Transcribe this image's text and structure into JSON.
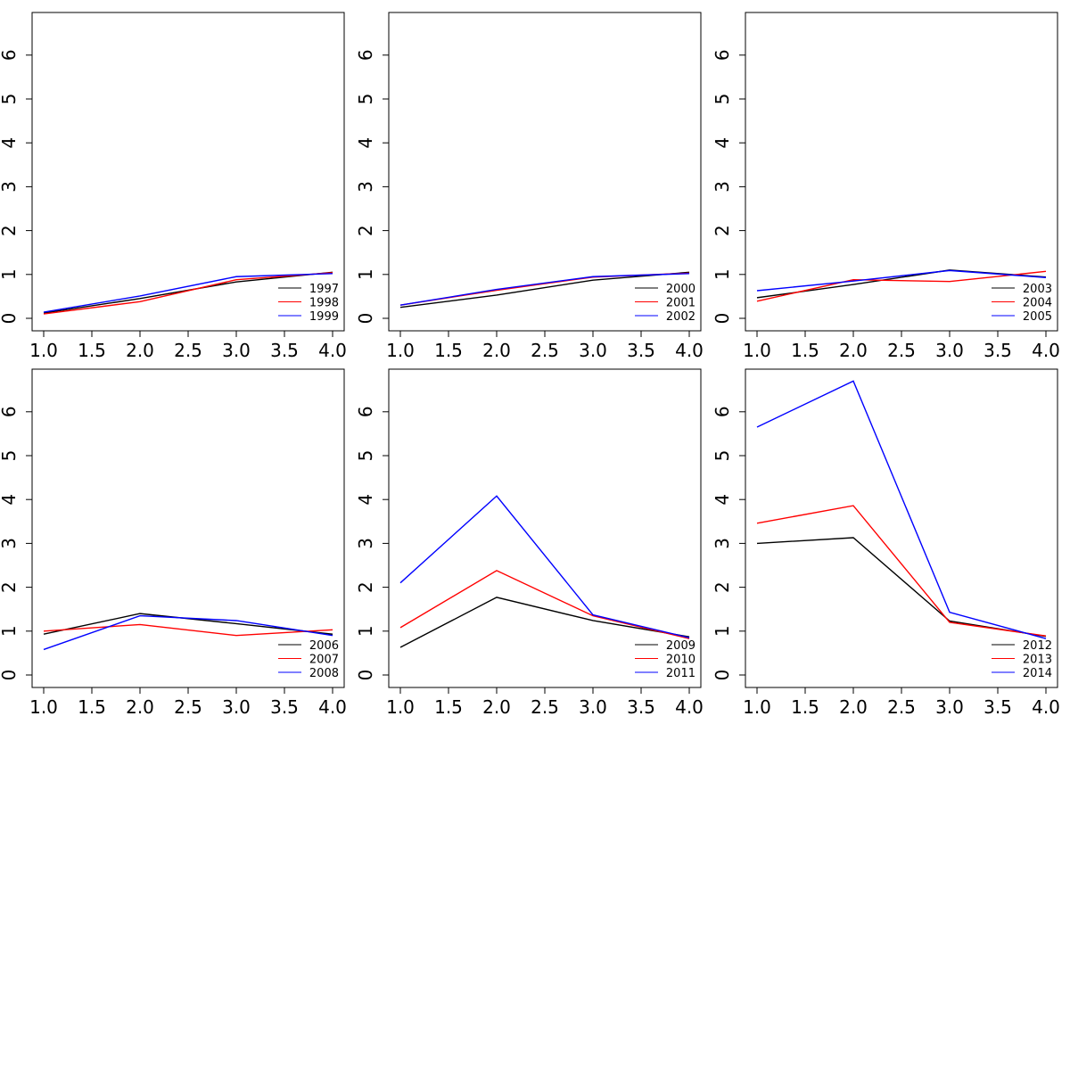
{
  "chart_data": [
    {
      "type": "line",
      "x": [
        1,
        2,
        3,
        4
      ],
      "xlim": [
        1,
        4
      ],
      "ylim": [
        0,
        7
      ],
      "xticks": [
        "1.0",
        "1.5",
        "2.0",
        "2.5",
        "3.0",
        "3.5",
        "4.0"
      ],
      "yticks": [
        "0",
        "1",
        "2",
        "3",
        "4",
        "5",
        "6"
      ],
      "legend_position": "bottom-right",
      "series": [
        {
          "name": "1997",
          "color": "#000000",
          "values": [
            0.12,
            0.45,
            0.83,
            1.05
          ]
        },
        {
          "name": "1998",
          "color": "#ff0000",
          "values": [
            0.1,
            0.38,
            0.88,
            1.04
          ]
        },
        {
          "name": "1999",
          "color": "#0000ff",
          "values": [
            0.14,
            0.51,
            0.95,
            1.02
          ]
        }
      ]
    },
    {
      "type": "line",
      "x": [
        1,
        2,
        3,
        4
      ],
      "xlim": [
        1,
        4
      ],
      "ylim": [
        0,
        7
      ],
      "xticks": [
        "1.0",
        "1.5",
        "2.0",
        "2.5",
        "3.0",
        "3.5",
        "4.0"
      ],
      "yticks": [
        "0",
        "1",
        "2",
        "3",
        "4",
        "5",
        "6"
      ],
      "legend_position": "bottom-right",
      "series": [
        {
          "name": "2000",
          "color": "#000000",
          "values": [
            0.25,
            0.53,
            0.87,
            1.05
          ]
        },
        {
          "name": "2001",
          "color": "#ff0000",
          "values": [
            0.3,
            0.64,
            0.94,
            1.03
          ]
        },
        {
          "name": "2002",
          "color": "#0000ff",
          "values": [
            0.3,
            0.66,
            0.95,
            1.02
          ]
        }
      ]
    },
    {
      "type": "line",
      "x": [
        1,
        2,
        3,
        4
      ],
      "xlim": [
        1,
        4
      ],
      "ylim": [
        0,
        7
      ],
      "xticks": [
        "1.0",
        "1.5",
        "2.0",
        "2.5",
        "3.0",
        "3.5",
        "4.0"
      ],
      "yticks": [
        "0",
        "1",
        "2",
        "3",
        "4",
        "5",
        "6"
      ],
      "legend_position": "bottom-right",
      "series": [
        {
          "name": "2003",
          "color": "#000000",
          "values": [
            0.47,
            0.77,
            1.1,
            0.94
          ]
        },
        {
          "name": "2004",
          "color": "#ff0000",
          "values": [
            0.39,
            0.88,
            0.84,
            1.07
          ]
        },
        {
          "name": "2005",
          "color": "#0000ff",
          "values": [
            0.63,
            0.85,
            1.09,
            0.93
          ]
        }
      ]
    },
    {
      "type": "line",
      "x": [
        1,
        2,
        3,
        4
      ],
      "xlim": [
        1,
        4
      ],
      "ylim": [
        0,
        7
      ],
      "xticks": [
        "1.0",
        "1.5",
        "2.0",
        "2.5",
        "3.0",
        "3.5",
        "4.0"
      ],
      "yticks": [
        "0",
        "1",
        "2",
        "3",
        "4",
        "5",
        "6"
      ],
      "legend_position": "bottom-right",
      "series": [
        {
          "name": "2006",
          "color": "#000000",
          "values": [
            0.93,
            1.4,
            1.17,
            0.93
          ]
        },
        {
          "name": "2007",
          "color": "#ff0000",
          "values": [
            1.0,
            1.15,
            0.9,
            1.03
          ]
        },
        {
          "name": "2008",
          "color": "#0000ff",
          "values": [
            0.58,
            1.35,
            1.24,
            0.9
          ]
        }
      ]
    },
    {
      "type": "line",
      "x": [
        1,
        2,
        3,
        4
      ],
      "xlim": [
        1,
        4
      ],
      "ylim": [
        0,
        7
      ],
      "xticks": [
        "1.0",
        "1.5",
        "2.0",
        "2.5",
        "3.0",
        "3.5",
        "4.0"
      ],
      "yticks": [
        "0",
        "1",
        "2",
        "3",
        "4",
        "5",
        "6"
      ],
      "legend_position": "bottom-right",
      "series": [
        {
          "name": "2009",
          "color": "#000000",
          "values": [
            0.63,
            1.77,
            1.24,
            0.87
          ]
        },
        {
          "name": "2010",
          "color": "#ff0000",
          "values": [
            1.08,
            2.38,
            1.35,
            0.83
          ]
        },
        {
          "name": "2011",
          "color": "#0000ff",
          "values": [
            2.1,
            4.08,
            1.37,
            0.85
          ]
        }
      ]
    },
    {
      "type": "line",
      "x": [
        1,
        2,
        3,
        4
      ],
      "xlim": [
        1,
        4
      ],
      "ylim": [
        0,
        7
      ],
      "xticks": [
        "1.0",
        "1.5",
        "2.0",
        "2.5",
        "3.0",
        "3.5",
        "4.0"
      ],
      "yticks": [
        "0",
        "1",
        "2",
        "3",
        "4",
        "5",
        "6"
      ],
      "legend_position": "bottom-right",
      "series": [
        {
          "name": "2012",
          "color": "#000000",
          "values": [
            3.0,
            3.13,
            1.23,
            0.88
          ]
        },
        {
          "name": "2013",
          "color": "#ff0000",
          "values": [
            3.46,
            3.86,
            1.2,
            0.89
          ]
        },
        {
          "name": "2014",
          "color": "#0000ff",
          "values": [
            5.65,
            6.7,
            1.43,
            0.83
          ]
        }
      ]
    }
  ]
}
